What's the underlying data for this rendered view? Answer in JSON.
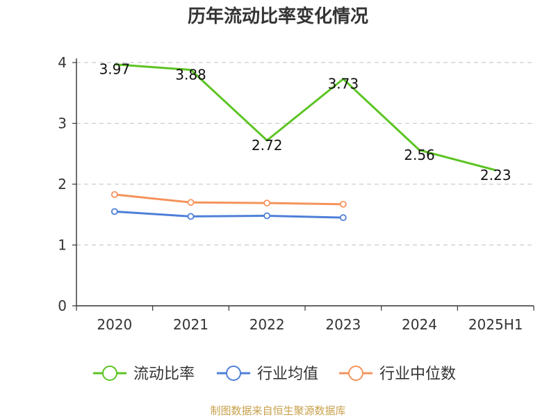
{
  "chart_data": {
    "type": "line",
    "title": "历年流动比率变化情况",
    "categories": [
      "2020",
      "2021",
      "2022",
      "2023",
      "2024",
      "2025H1"
    ],
    "y_ticks": [
      "0",
      "1",
      "2",
      "3",
      "4"
    ],
    "ylim": [
      0,
      4
    ],
    "grid": "horizontal dashed",
    "legend_position": "bottom",
    "series": [
      {
        "name": "流动比率",
        "color": "#5cc423",
        "values": [
          3.97,
          3.88,
          2.72,
          3.73,
          2.56,
          2.23
        ],
        "labels": [
          "3.97",
          "3.88",
          "2.72",
          "3.73",
          "2.56",
          "2.23"
        ],
        "markers": false
      },
      {
        "name": "行业均值",
        "color": "#4e7fd8",
        "values": [
          1.55,
          1.47,
          1.48,
          1.45,
          null,
          null
        ],
        "markers": true
      },
      {
        "name": "行业中位数",
        "color": "#f5935c",
        "values": [
          1.83,
          1.7,
          1.69,
          1.67,
          null,
          null
        ],
        "markers": true
      }
    ]
  },
  "footer": {
    "source": "制图数据来自恒生聚源数据库"
  }
}
